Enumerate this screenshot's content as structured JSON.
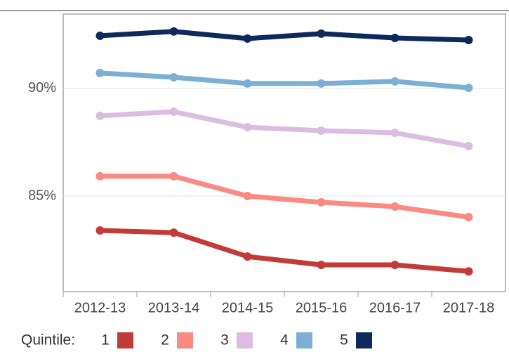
{
  "chart_data": {
    "type": "line",
    "categories": [
      "2012-13",
      "2013-14",
      "2014-15",
      "2015-16",
      "2016-17",
      "2017-18"
    ],
    "series": [
      {
        "name": "1",
        "color": "#c23b37",
        "values": [
          83.4,
          83.3,
          82.19,
          81.8,
          81.8,
          81.5
        ]
      },
      {
        "name": "2",
        "color": "#fb8a82",
        "values": [
          85.92,
          85.92,
          85.0,
          84.71,
          84.51,
          84.02
        ]
      },
      {
        "name": "3",
        "color": "#dcbce2",
        "values": [
          88.73,
          88.92,
          88.2,
          88.04,
          87.94,
          87.32
        ]
      },
      {
        "name": "4",
        "color": "#7bafd6",
        "values": [
          90.72,
          90.52,
          90.23,
          90.23,
          90.33,
          90.03
        ]
      },
      {
        "name": "5",
        "color": "#0c2a5b",
        "values": [
          92.45,
          92.65,
          92.32,
          92.55,
          92.35,
          92.25
        ]
      }
    ],
    "legend_title": "Quintile:",
    "ylim": [
      80.56,
      93.46
    ],
    "yticks": [
      {
        "value": 85,
        "label": "85%"
      },
      {
        "value": 90,
        "label": "90%"
      }
    ],
    "grid": true
  }
}
